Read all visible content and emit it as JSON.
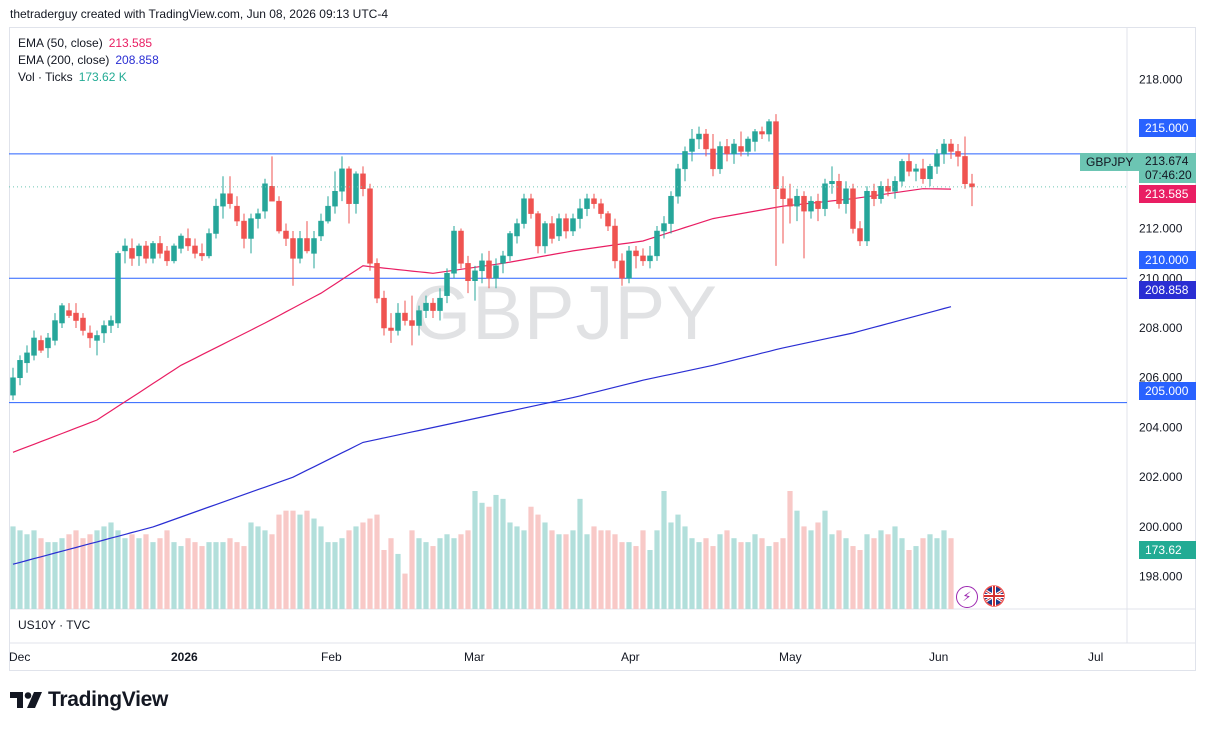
{
  "header": {
    "attribution": "thetraderguy created with TradingView.com, Jun 08, 2026 09:13 UTC-4"
  },
  "symbol": {
    "name": "GBPJPY",
    "watermark": "GBPJPY",
    "last_price": "213.674",
    "countdown": "07:46:20"
  },
  "legend": {
    "ema50": {
      "name": "EMA (50, close)",
      "value": "213.585"
    },
    "ema200": {
      "name": "EMA (200, close)",
      "value": "208.858"
    },
    "volume": {
      "name": "Vol · Ticks",
      "value": "173.62 K"
    }
  },
  "horizontal_levels": [
    {
      "label": "215.000"
    },
    {
      "label": "210.000"
    },
    {
      "label": "205.000"
    }
  ],
  "lower_pane": {
    "label": "US10Y · TVC"
  },
  "brand": {
    "name": "TradingView"
  },
  "colors": {
    "up": "#26a69a",
    "down": "#ef5350",
    "ema50": "#e91e63",
    "ema200": "#2a2ed3",
    "hline": "#2962ff",
    "vol_up": "#b2dfdb",
    "vol_down": "#f8c9c7",
    "last_price": "#6cc5b3"
  },
  "chart_data": {
    "type": "candlestick",
    "title": "",
    "y_ticks": [
      "218.000",
      "216.000",
      "214.000",
      "212.000",
      "210.000",
      "208.000",
      "206.000",
      "204.000",
      "202.000",
      "200.000",
      "198.000"
    ],
    "x_ticks": [
      "Dec",
      "2026",
      "Feb",
      "Mar",
      "Apr",
      "May",
      "Jun",
      "Jul"
    ],
    "ylim": [
      196.7,
      219.3
    ],
    "hlines": [
      215.0,
      210.0,
      205.0
    ],
    "ohlc": [
      [
        205.3,
        206.4,
        205.1,
        206.0
      ],
      [
        206.0,
        206.9,
        205.7,
        206.7
      ],
      [
        206.6,
        207.3,
        206.2,
        207.0
      ],
      [
        206.9,
        207.9,
        206.7,
        207.6
      ],
      [
        207.5,
        207.7,
        207.0,
        207.1
      ],
      [
        207.2,
        207.8,
        206.8,
        207.6
      ],
      [
        207.5,
        208.6,
        207.3,
        208.3
      ],
      [
        208.2,
        209.0,
        208.0,
        208.9
      ],
      [
        208.7,
        209.0,
        208.4,
        208.5
      ],
      [
        208.6,
        209.0,
        208.0,
        208.3
      ],
      [
        208.4,
        208.6,
        207.7,
        207.9
      ],
      [
        207.8,
        208.1,
        207.2,
        207.6
      ],
      [
        207.5,
        207.9,
        206.9,
        207.7
      ],
      [
        207.8,
        208.3,
        207.4,
        208.1
      ],
      [
        208.1,
        208.5,
        207.8,
        208.3
      ],
      [
        208.2,
        211.1,
        208.0,
        211.0
      ],
      [
        211.1,
        211.6,
        210.6,
        211.3
      ],
      [
        211.2,
        211.6,
        210.5,
        210.8
      ],
      [
        210.9,
        211.4,
        210.5,
        211.3
      ],
      [
        211.3,
        211.5,
        210.6,
        210.8
      ],
      [
        210.8,
        211.5,
        210.6,
        211.4
      ],
      [
        211.4,
        211.7,
        210.8,
        211.0
      ],
      [
        211.1,
        211.3,
        210.5,
        210.7
      ],
      [
        210.7,
        211.4,
        210.6,
        211.3
      ],
      [
        211.2,
        211.8,
        211.0,
        211.7
      ],
      [
        211.6,
        212.0,
        211.1,
        211.3
      ],
      [
        211.3,
        211.6,
        210.8,
        211.0
      ],
      [
        211.0,
        211.4,
        210.7,
        210.9
      ],
      [
        210.9,
        212.0,
        210.8,
        211.8
      ],
      [
        211.8,
        213.2,
        211.6,
        212.9
      ],
      [
        212.9,
        214.1,
        212.4,
        213.4
      ],
      [
        213.4,
        214.1,
        212.8,
        213.0
      ],
      [
        212.9,
        213.3,
        212.1,
        212.3
      ],
      [
        212.3,
        212.6,
        211.2,
        211.6
      ],
      [
        211.6,
        212.6,
        211.0,
        212.4
      ],
      [
        212.4,
        212.8,
        212.0,
        212.6
      ],
      [
        212.7,
        214.0,
        212.4,
        213.8
      ],
      [
        213.7,
        214.9,
        213.3,
        213.1
      ],
      [
        213.1,
        213.3,
        211.8,
        211.9
      ],
      [
        211.9,
        212.2,
        211.3,
        211.6
      ],
      [
        211.6,
        211.9,
        209.7,
        210.8
      ],
      [
        210.8,
        211.9,
        210.6,
        211.6
      ],
      [
        211.6,
        212.3,
        211.0,
        211.1
      ],
      [
        211.0,
        211.9,
        210.4,
        211.6
      ],
      [
        211.7,
        212.6,
        211.5,
        212.3
      ],
      [
        212.3,
        213.3,
        212.2,
        212.9
      ],
      [
        212.9,
        214.3,
        212.6,
        213.5
      ],
      [
        213.5,
        214.9,
        213.1,
        214.4
      ],
      [
        214.4,
        214.5,
        212.2,
        213.0
      ],
      [
        213.0,
        214.3,
        212.6,
        214.2
      ],
      [
        214.2,
        214.5,
        213.3,
        213.6
      ],
      [
        213.6,
        213.8,
        210.3,
        210.6
      ],
      [
        210.6,
        210.8,
        209.0,
        209.2
      ],
      [
        209.2,
        209.5,
        207.7,
        208.0
      ],
      [
        208.0,
        208.6,
        207.4,
        207.9
      ],
      [
        207.9,
        209.0,
        207.7,
        208.6
      ],
      [
        208.6,
        209.1,
        208.1,
        208.3
      ],
      [
        208.3,
        209.3,
        207.3,
        208.1
      ],
      [
        208.1,
        208.9,
        207.7,
        208.7
      ],
      [
        208.7,
        209.3,
        208.4,
        209.0
      ],
      [
        209.0,
        209.2,
        208.4,
        208.7
      ],
      [
        208.7,
        209.6,
        208.3,
        209.2
      ],
      [
        209.3,
        210.4,
        209.0,
        210.2
      ],
      [
        210.2,
        212.1,
        210.0,
        211.9
      ],
      [
        211.9,
        212.0,
        210.4,
        210.6
      ],
      [
        210.6,
        210.9,
        209.4,
        209.9
      ],
      [
        209.9,
        210.5,
        209.1,
        210.3
      ],
      [
        210.3,
        211.0,
        209.8,
        210.7
      ],
      [
        210.7,
        211.1,
        209.6,
        210.0
      ],
      [
        210.0,
        210.8,
        209.6,
        210.5
      ],
      [
        210.6,
        211.1,
        210.2,
        210.9
      ],
      [
        210.9,
        211.9,
        210.7,
        211.8
      ],
      [
        211.7,
        212.4,
        211.4,
        212.2
      ],
      [
        212.2,
        213.4,
        212.0,
        213.2
      ],
      [
        213.2,
        213.4,
        212.4,
        212.6
      ],
      [
        212.6,
        212.7,
        211.0,
        211.3
      ],
      [
        211.3,
        212.3,
        211.0,
        212.2
      ],
      [
        212.2,
        212.5,
        211.4,
        211.6
      ],
      [
        211.7,
        212.6,
        211.5,
        212.4
      ],
      [
        212.4,
        212.6,
        211.6,
        211.9
      ],
      [
        211.9,
        212.6,
        211.7,
        212.4
      ],
      [
        212.4,
        213.2,
        212.0,
        212.8
      ],
      [
        212.8,
        213.4,
        212.5,
        213.2
      ],
      [
        213.2,
        213.4,
        212.8,
        213.0
      ],
      [
        213.0,
        213.2,
        212.4,
        212.6
      ],
      [
        212.6,
        212.7,
        211.9,
        212.1
      ],
      [
        212.1,
        212.4,
        210.4,
        210.7
      ],
      [
        210.7,
        211.0,
        209.7,
        210.0
      ],
      [
        210.0,
        211.3,
        209.8,
        211.1
      ],
      [
        211.1,
        211.3,
        210.4,
        210.9
      ],
      [
        210.9,
        211.2,
        210.5,
        210.7
      ],
      [
        210.7,
        211.3,
        210.4,
        210.9
      ],
      [
        210.9,
        212.1,
        210.7,
        211.9
      ],
      [
        211.9,
        212.5,
        211.6,
        212.2
      ],
      [
        212.2,
        213.5,
        211.8,
        213.3
      ],
      [
        213.3,
        214.6,
        213.0,
        214.4
      ],
      [
        214.4,
        215.3,
        213.9,
        215.1
      ],
      [
        215.1,
        216.0,
        214.7,
        215.6
      ],
      [
        215.6,
        216.1,
        215.2,
        215.8
      ],
      [
        215.8,
        216.0,
        214.9,
        215.2
      ],
      [
        215.2,
        215.8,
        214.1,
        214.4
      ],
      [
        214.4,
        215.5,
        214.2,
        215.3
      ],
      [
        215.3,
        215.6,
        214.7,
        215.0
      ],
      [
        215.0,
        215.6,
        214.6,
        215.4
      ],
      [
        215.3,
        215.9,
        214.9,
        215.1
      ],
      [
        215.1,
        215.7,
        214.9,
        215.6
      ],
      [
        215.5,
        216.0,
        215.1,
        215.9
      ],
      [
        215.9,
        216.1,
        215.6,
        215.8
      ],
      [
        215.8,
        216.4,
        215.5,
        216.3
      ],
      [
        216.3,
        216.6,
        210.5,
        213.6
      ],
      [
        213.6,
        214.1,
        211.4,
        213.2
      ],
      [
        213.2,
        213.8,
        212.2,
        212.9
      ],
      [
        212.9,
        213.6,
        212.3,
        213.3
      ],
      [
        213.3,
        213.5,
        210.8,
        212.7
      ],
      [
        212.7,
        213.3,
        212.4,
        213.1
      ],
      [
        213.1,
        213.4,
        212.3,
        212.8
      ],
      [
        212.8,
        214.0,
        212.5,
        213.8
      ],
      [
        213.8,
        214.5,
        213.4,
        213.9
      ],
      [
        213.9,
        214.2,
        212.8,
        213.0
      ],
      [
        213.0,
        213.9,
        212.6,
        213.6
      ],
      [
        213.6,
        213.8,
        211.8,
        212.0
      ],
      [
        212.0,
        212.3,
        211.3,
        211.5
      ],
      [
        211.5,
        213.7,
        211.3,
        213.5
      ],
      [
        213.5,
        213.8,
        212.9,
        213.2
      ],
      [
        213.2,
        213.9,
        213.0,
        213.7
      ],
      [
        213.7,
        214.0,
        213.3,
        213.5
      ],
      [
        213.5,
        214.1,
        213.2,
        213.9
      ],
      [
        213.9,
        214.8,
        213.7,
        214.7
      ],
      [
        214.7,
        215.0,
        214.1,
        214.3
      ],
      [
        214.3,
        214.6,
        213.9,
        214.4
      ],
      [
        214.4,
        214.8,
        213.8,
        214.0
      ],
      [
        214.0,
        214.6,
        213.7,
        214.5
      ],
      [
        214.5,
        215.2,
        214.2,
        215.0
      ],
      [
        215.0,
        215.6,
        214.6,
        215.4
      ],
      [
        215.4,
        215.6,
        214.8,
        215.1
      ],
      [
        215.1,
        215.4,
        214.5,
        214.9
      ],
      [
        214.9,
        215.7,
        213.6,
        213.8
      ],
      [
        213.8,
        214.2,
        212.9,
        213.674
      ]
    ],
    "ema50": [
      [
        0,
        203.0
      ],
      [
        12,
        204.3
      ],
      [
        24,
        206.5
      ],
      [
        36,
        208.2
      ],
      [
        44,
        209.4
      ],
      [
        50,
        210.5
      ],
      [
        60,
        210.2
      ],
      [
        70,
        210.6
      ],
      [
        80,
        211.1
      ],
      [
        90,
        211.5
      ],
      [
        100,
        212.4
      ],
      [
        110,
        212.9
      ],
      [
        120,
        213.2
      ],
      [
        130,
        213.6
      ],
      [
        134,
        213.585
      ]
    ],
    "ema200": [
      [
        0,
        198.5
      ],
      [
        20,
        200.0
      ],
      [
        40,
        202.0
      ],
      [
        50,
        203.4
      ],
      [
        70,
        204.6
      ],
      [
        80,
        205.2
      ],
      [
        90,
        205.9
      ],
      [
        100,
        206.5
      ],
      [
        110,
        207.2
      ],
      [
        120,
        207.8
      ],
      [
        134,
        208.858
      ]
    ],
    "volume": [
      42,
      40,
      38,
      40,
      36,
      34,
      34,
      36,
      38,
      40,
      36,
      38,
      40,
      42,
      44,
      40,
      36,
      38,
      36,
      38,
      34,
      36,
      40,
      34,
      32,
      36,
      34,
      32,
      34,
      34,
      34,
      36,
      34,
      32,
      44,
      42,
      40,
      38,
      48,
      50,
      50,
      48,
      50,
      46,
      42,
      34,
      34,
      36,
      40,
      42,
      44,
      46,
      48,
      30,
      36,
      28,
      18,
      40,
      36,
      34,
      32,
      36,
      38,
      36,
      38,
      40,
      60,
      54,
      52,
      58,
      56,
      44,
      42,
      40,
      52,
      48,
      44,
      40,
      38,
      38,
      40,
      56,
      38,
      42,
      40,
      40,
      38,
      34,
      34,
      32,
      40,
      30,
      40,
      60,
      44,
      48,
      42,
      36,
      34,
      36,
      32,
      38,
      40,
      36,
      34,
      34,
      38,
      36,
      32,
      34,
      36,
      60,
      50,
      42,
      40,
      44,
      50,
      38,
      40,
      36,
      32,
      30,
      38,
      36,
      40,
      38,
      42,
      36,
      30,
      32,
      36,
      38,
      36,
      40,
      36
    ]
  }
}
